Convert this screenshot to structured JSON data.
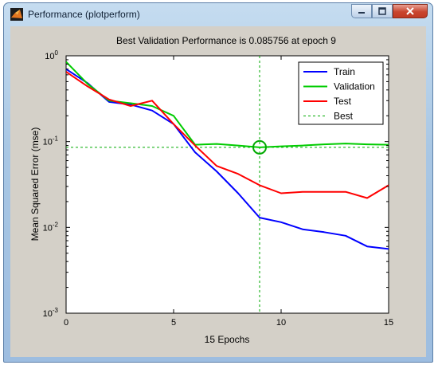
{
  "window": {
    "title": "Performance (plotperform)",
    "icon": "matlab-icon",
    "controls": [
      "minimize-icon",
      "maximize-icon",
      "close-icon"
    ]
  },
  "chart_data": {
    "type": "line",
    "title": "Best Validation Performance is 0.085756 at epoch 9",
    "xlabel": "15 Epochs",
    "ylabel": "Mean Squared Error  (mse)",
    "xlim": [
      0,
      15
    ],
    "ylim": [
      0.001,
      1
    ],
    "yscale": "log",
    "xticks": [
      0,
      5,
      10,
      15
    ],
    "xtick_labels": [
      "0",
      "5",
      "10",
      "15"
    ],
    "yticks": [
      0.001,
      0.01,
      0.1,
      1
    ],
    "ytick_labels": [
      {
        "base": "10",
        "exp": "-3"
      },
      {
        "base": "10",
        "exp": "-2"
      },
      {
        "base": "10",
        "exp": "-1"
      },
      {
        "base": "10",
        "exp": "0"
      }
    ],
    "x": [
      0,
      1,
      2,
      3,
      4,
      5,
      6,
      7,
      8,
      9,
      10,
      11,
      12,
      13,
      14,
      15
    ],
    "series": [
      {
        "name": "Train",
        "color": "#0000ff",
        "values": [
          0.7,
          0.48,
          0.29,
          0.27,
          0.23,
          0.16,
          0.075,
          0.045,
          0.025,
          0.013,
          0.0115,
          0.0095,
          0.0088,
          0.008,
          0.006,
          0.0056
        ]
      },
      {
        "name": "Validation",
        "color": "#00cc00",
        "values": [
          0.85,
          0.47,
          0.3,
          0.28,
          0.26,
          0.2,
          0.092,
          0.094,
          0.09,
          0.085756,
          0.088,
          0.09,
          0.093,
          0.095,
          0.093,
          0.092
        ]
      },
      {
        "name": "Test",
        "color": "#ff0000",
        "values": [
          0.65,
          0.44,
          0.31,
          0.26,
          0.3,
          0.16,
          0.09,
          0.052,
          0.042,
          0.031,
          0.025,
          0.026,
          0.026,
          0.026,
          0.022,
          0.031
        ]
      }
    ],
    "best": {
      "name": "Best",
      "color": "#00aa00",
      "epoch": 9,
      "value": 0.085756,
      "style": "dashed"
    },
    "legend": {
      "placement": "top-right"
    },
    "grid": false
  }
}
